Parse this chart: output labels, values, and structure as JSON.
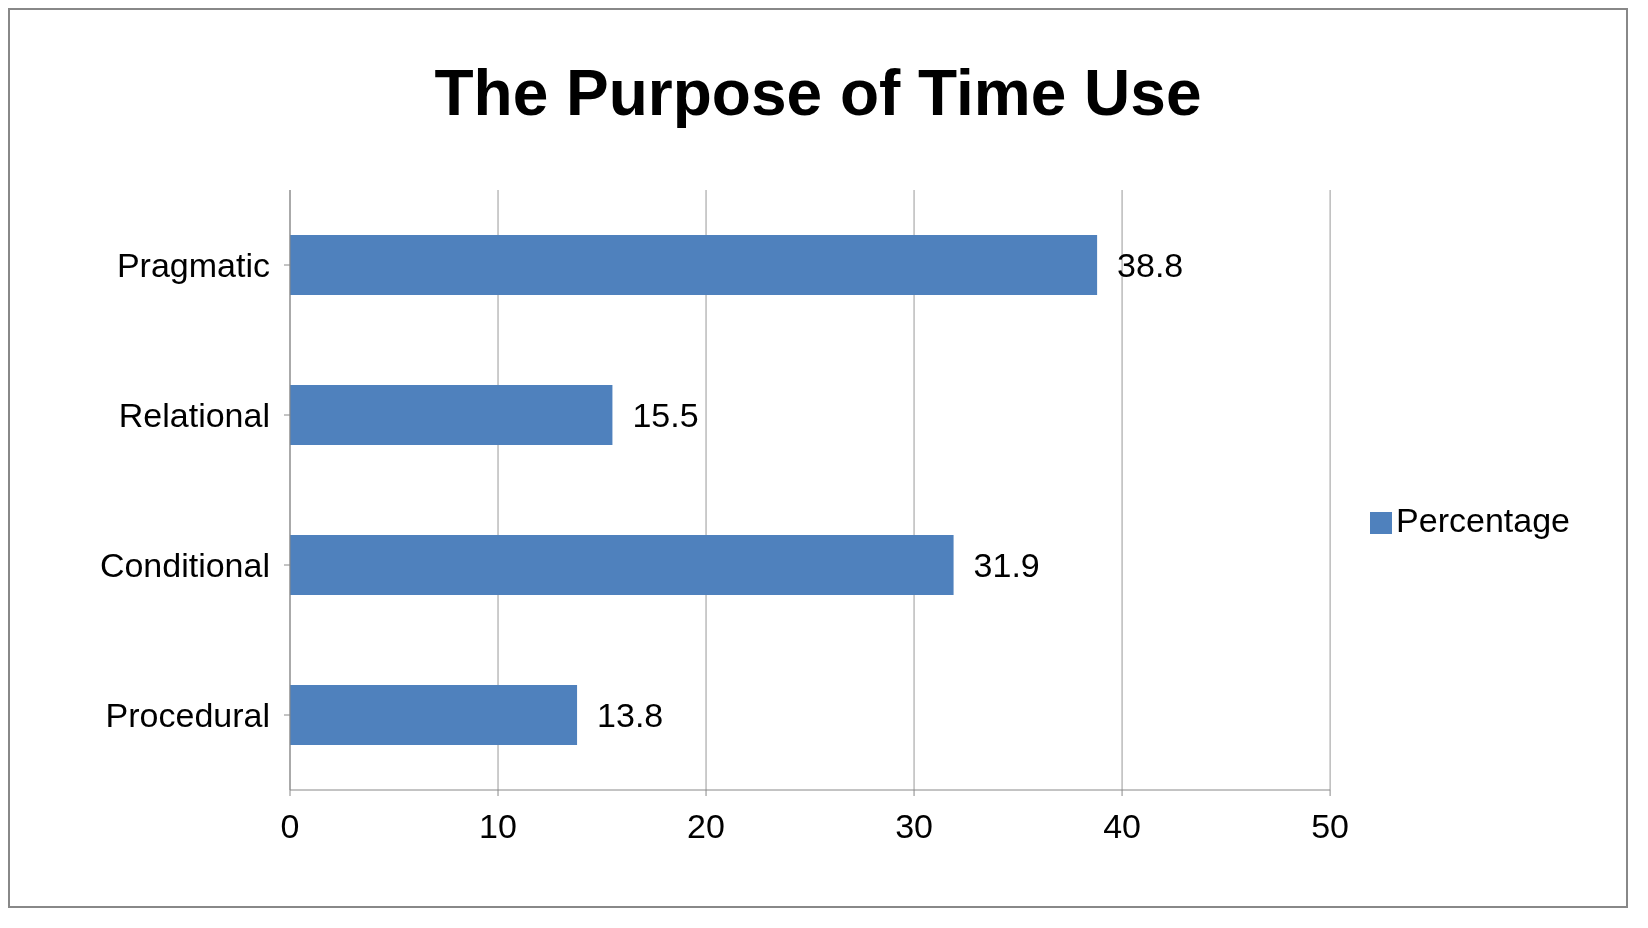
{
  "chart_data": {
    "type": "bar",
    "orientation": "horizontal",
    "title": "The Purpose of Time Use",
    "categories": [
      "Pragmatic",
      "Relational",
      "Conditional",
      "Procedural"
    ],
    "series": [
      {
        "name": "Percentage",
        "color": "#4f81bd",
        "values": [
          38.8,
          15.5,
          31.9,
          13.8
        ]
      }
    ],
    "xlim": [
      0,
      50
    ],
    "xticks": [
      0,
      10,
      20,
      30,
      40,
      50
    ],
    "grid": "x",
    "legend": "right",
    "data_labels": true
  }
}
